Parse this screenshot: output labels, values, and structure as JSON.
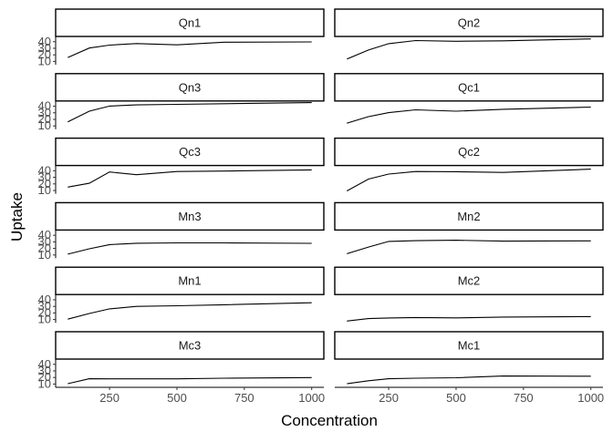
{
  "chart_data": {
    "type": "line",
    "layout": "facet-grid",
    "ncol": 2,
    "xlabel": "Concentration",
    "ylabel": "Uptake",
    "x": [
      95,
      175,
      250,
      350,
      500,
      675,
      1000
    ],
    "x_ticks": [
      250,
      500,
      750,
      1000
    ],
    "y_ticks": [
      10,
      20,
      30,
      40
    ],
    "xlim": [
      50,
      1045
    ],
    "ylim": [
      5,
      48
    ],
    "grid": false,
    "line_color": "#000000",
    "panels": [
      {
        "name": "Qn1",
        "values": [
          16.0,
          30.4,
          34.8,
          37.2,
          35.3,
          39.2,
          39.7
        ]
      },
      {
        "name": "Qn2",
        "values": [
          13.6,
          27.3,
          37.1,
          41.8,
          40.6,
          41.4,
          44.3
        ]
      },
      {
        "name": "Qn3",
        "values": [
          16.2,
          32.4,
          40.3,
          42.1,
          42.9,
          43.9,
          45.5
        ]
      },
      {
        "name": "Qc1",
        "values": [
          14.2,
          24.1,
          30.3,
          34.6,
          32.5,
          35.4,
          38.7
        ]
      },
      {
        "name": "Qc3",
        "values": [
          15.1,
          21.0,
          38.1,
          34.0,
          38.9,
          39.6,
          41.4
        ]
      },
      {
        "name": "Qc2",
        "values": [
          9.3,
          27.3,
          35.0,
          38.8,
          38.6,
          37.5,
          42.4
        ]
      },
      {
        "name": "Mn3",
        "values": [
          11.3,
          19.4,
          25.8,
          27.9,
          28.5,
          28.5,
          27.8
        ]
      },
      {
        "name": "Mn2",
        "values": [
          12.0,
          22.0,
          30.6,
          31.8,
          32.4,
          31.1,
          31.5
        ]
      },
      {
        "name": "Mn1",
        "values": [
          10.6,
          19.2,
          26.2,
          30.0,
          30.9,
          32.4,
          35.5
        ]
      },
      {
        "name": "Mc2",
        "values": [
          7.7,
          11.4,
          12.3,
          13.0,
          12.5,
          13.7,
          14.4
        ]
      },
      {
        "name": "Mc3",
        "values": [
          10.5,
          18.0,
          17.9,
          17.9,
          17.9,
          18.9,
          19.9
        ]
      },
      {
        "name": "Mc1",
        "values": [
          10.5,
          15.0,
          18.0,
          18.9,
          19.5,
          22.2,
          21.9
        ]
      }
    ]
  }
}
